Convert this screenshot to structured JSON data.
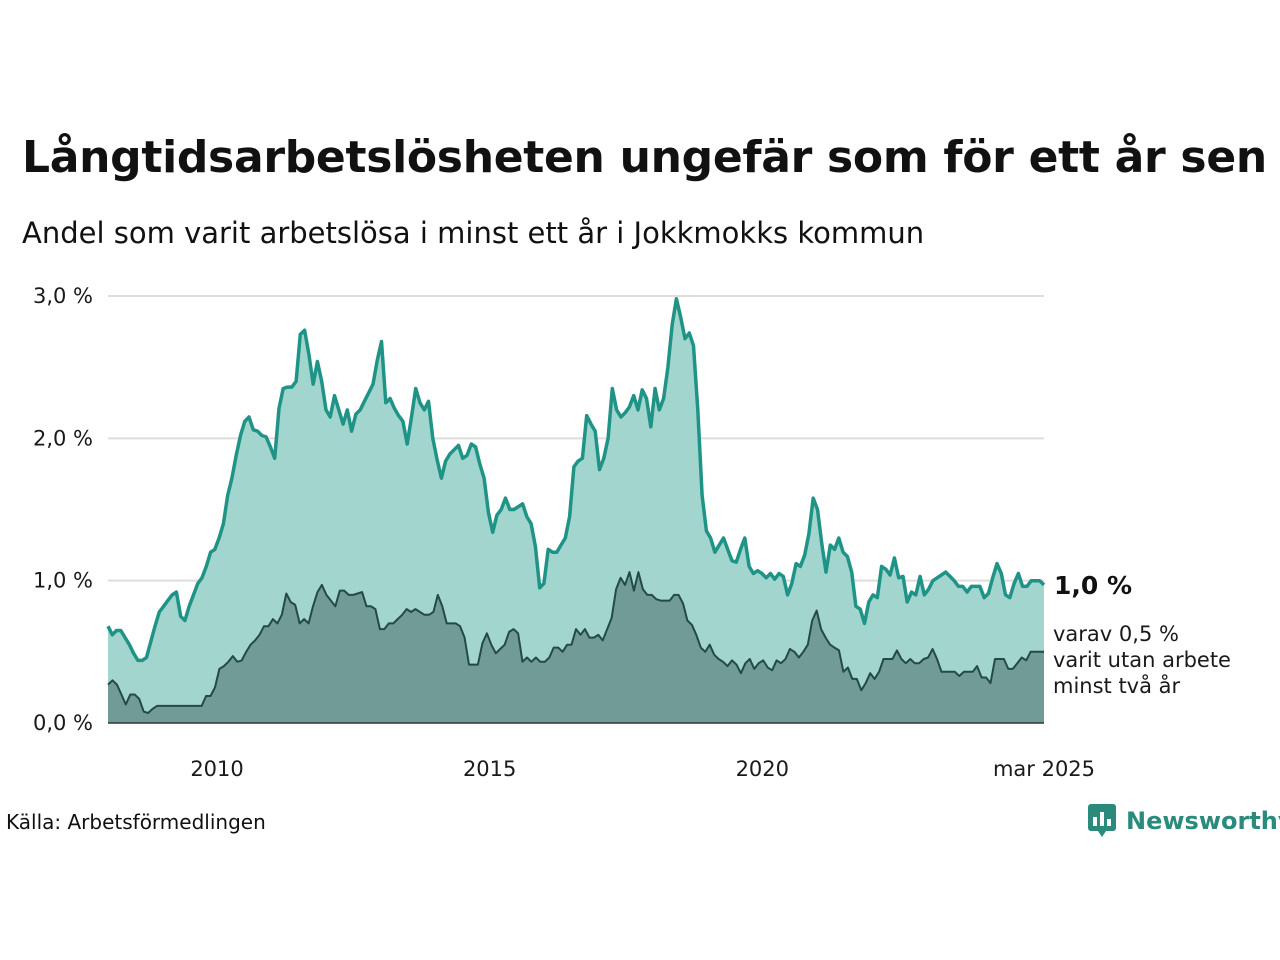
{
  "title": "Långtidsarbetslösheten ungefär som för ett år sen",
  "subtitle": "Andel som varit arbetslösa i minst ett år i Jokkmokks kommun",
  "source": "Källa: Arbetsförmedlingen",
  "brand": {
    "name": "Newsworthy",
    "icon": "newsworthy-logo-icon"
  },
  "colors": {
    "main_line": "#1f9486",
    "main_fill": "#a3d5cf",
    "sub_line": "#244a44",
    "sub_fill": "#719c96",
    "grid": "#dddddd",
    "brand": "#2a8a7c"
  },
  "chart_data": {
    "type": "area",
    "x_start": "2008-01",
    "x_end": "2025-03",
    "x_interval": "month",
    "ylim": [
      0,
      3
    ],
    "yticks": [
      0,
      1,
      2,
      3
    ],
    "ytick_labels": [
      "0,0 %",
      "1,0 %",
      "2,0 %",
      "3,0 %"
    ],
    "xticks": [
      "2010",
      "2015",
      "2020",
      "mar 2025"
    ],
    "grid": true,
    "legend": "none",
    "end_label": "1,0 %",
    "sub_label_lines": [
      "varav 0,5 %",
      "varit utan arbete",
      "minst två år"
    ],
    "series": [
      {
        "values": [
          0.68,
          0.62,
          0.65,
          0.65,
          0.6,
          0.55,
          0.49,
          0.44,
          0.44,
          0.46,
          0.57,
          0.68,
          0.78,
          0.82,
          0.86,
          0.9,
          0.92,
          0.75,
          0.72,
          0.82,
          0.9,
          0.98,
          1.02,
          1.1,
          1.2,
          1.22,
          1.3,
          1.4,
          1.6,
          1.72,
          1.88,
          2.02,
          2.12,
          2.15,
          2.06,
          2.05,
          2.02,
          2.01,
          1.94,
          1.86,
          2.21,
          2.35,
          2.36,
          2.36,
          2.4,
          2.73,
          2.76,
          2.59,
          2.38,
          2.54,
          2.4,
          2.2,
          2.15,
          2.3,
          2.2,
          2.1,
          2.2,
          2.05,
          2.17,
          2.2,
          2.26,
          2.32,
          2.38,
          2.55,
          2.68,
          2.25,
          2.28,
          2.21,
          2.16,
          2.12,
          1.96,
          2.15,
          2.35,
          2.25,
          2.2,
          2.26,
          2.0,
          1.85,
          1.72,
          1.84,
          1.89,
          1.92,
          1.95,
          1.86,
          1.88,
          1.96,
          1.94,
          1.82,
          1.72,
          1.48,
          1.34,
          1.46,
          1.5,
          1.58,
          1.5,
          1.5,
          1.52,
          1.54,
          1.45,
          1.4,
          1.24,
          0.95,
          0.98,
          1.22,
          1.2,
          1.2,
          1.25,
          1.3,
          1.45,
          1.8,
          1.84,
          1.86,
          2.16,
          2.1,
          2.05,
          1.78,
          1.86,
          2.0,
          2.35,
          2.2,
          2.15,
          2.18,
          2.22,
          2.3,
          2.2,
          2.34,
          2.28,
          2.08,
          2.35,
          2.2,
          2.28,
          2.5,
          2.8,
          2.98,
          2.85,
          2.7,
          2.74,
          2.65,
          2.2,
          1.6,
          1.35,
          1.3,
          1.2,
          1.25,
          1.3,
          1.22,
          1.14,
          1.13,
          1.22,
          1.3,
          1.1,
          1.05,
          1.07,
          1.05,
          1.02,
          1.05,
          1.01,
          1.05,
          1.03,
          0.9,
          0.98,
          1.12,
          1.1,
          1.18,
          1.33,
          1.58,
          1.5,
          1.26,
          1.06,
          1.25,
          1.22,
          1.3,
          1.2,
          1.17,
          1.06,
          0.82,
          0.8,
          0.7,
          0.85,
          0.9,
          0.88,
          1.1,
          1.08,
          1.04,
          1.16,
          1.02,
          1.03,
          0.85,
          0.92,
          0.9,
          1.03,
          0.9,
          0.94,
          1.0,
          1.02,
          1.04,
          1.06,
          1.03,
          1.0,
          0.96,
          0.96,
          0.92,
          0.96,
          0.96,
          0.96,
          0.88,
          0.91,
          1.02,
          1.12,
          1.05,
          0.9,
          0.88,
          0.98,
          1.05,
          0.96,
          0.96,
          1.0,
          1.0,
          1.0,
          0.97
        ]
      },
      {
        "values": [
          0.27,
          0.3,
          0.27,
          0.2,
          0.13,
          0.2,
          0.2,
          0.17,
          0.08,
          0.07,
          0.1,
          0.12,
          0.12,
          0.12,
          0.12,
          0.12,
          0.12,
          0.12,
          0.12,
          0.12,
          0.12,
          0.12,
          0.19,
          0.19,
          0.25,
          0.38,
          0.4,
          0.43,
          0.47,
          0.43,
          0.44,
          0.5,
          0.55,
          0.58,
          0.62,
          0.68,
          0.68,
          0.73,
          0.7,
          0.76,
          0.91,
          0.85,
          0.83,
          0.7,
          0.73,
          0.7,
          0.82,
          0.92,
          0.97,
          0.9,
          0.86,
          0.82,
          0.93,
          0.93,
          0.9,
          0.9,
          0.91,
          0.92,
          0.82,
          0.82,
          0.8,
          0.66,
          0.66,
          0.7,
          0.7,
          0.73,
          0.76,
          0.8,
          0.78,
          0.8,
          0.78,
          0.76,
          0.76,
          0.78,
          0.9,
          0.82,
          0.7,
          0.7,
          0.7,
          0.68,
          0.6,
          0.41,
          0.41,
          0.41,
          0.56,
          0.63,
          0.55,
          0.49,
          0.52,
          0.55,
          0.64,
          0.66,
          0.63,
          0.43,
          0.46,
          0.43,
          0.46,
          0.43,
          0.43,
          0.46,
          0.53,
          0.53,
          0.5,
          0.55,
          0.55,
          0.66,
          0.62,
          0.66,
          0.6,
          0.6,
          0.62,
          0.58,
          0.66,
          0.74,
          0.94,
          1.02,
          0.97,
          1.06,
          0.93,
          1.06,
          0.94,
          0.9,
          0.9,
          0.87,
          0.86,
          0.86,
          0.86,
          0.9,
          0.9,
          0.84,
          0.72,
          0.69,
          0.62,
          0.53,
          0.5,
          0.55,
          0.48,
          0.45,
          0.43,
          0.4,
          0.44,
          0.41,
          0.35,
          0.42,
          0.45,
          0.38,
          0.42,
          0.44,
          0.39,
          0.37,
          0.44,
          0.42,
          0.45,
          0.52,
          0.5,
          0.46,
          0.5,
          0.55,
          0.72,
          0.79,
          0.66,
          0.6,
          0.55,
          0.53,
          0.51,
          0.36,
          0.39,
          0.31,
          0.31,
          0.23,
          0.28,
          0.35,
          0.31,
          0.36,
          0.45,
          0.45,
          0.45,
          0.51,
          0.45,
          0.42,
          0.45,
          0.42,
          0.42,
          0.45,
          0.46,
          0.52,
          0.45,
          0.36,
          0.36,
          0.36,
          0.36,
          0.33,
          0.36,
          0.36,
          0.36,
          0.4,
          0.32,
          0.32,
          0.28,
          0.45,
          0.45,
          0.45,
          0.38,
          0.38,
          0.42,
          0.46,
          0.44,
          0.5,
          0.5,
          0.5,
          0.5
        ]
      }
    ]
  }
}
